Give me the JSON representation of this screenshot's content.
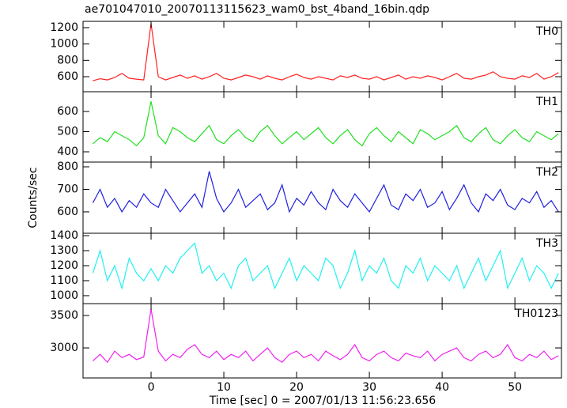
{
  "chart_data": [
    {
      "type": "line",
      "title": "ae701047010_20070113115623_wam0_bst_4band_16bin.qdp",
      "label": "TH0",
      "color": "#ff2020",
      "x": [
        -8,
        -7,
        -6,
        -5,
        -4,
        -3,
        -2,
        -1,
        0,
        1,
        2,
        3,
        4,
        5,
        6,
        7,
        8,
        9,
        10,
        11,
        12,
        13,
        14,
        15,
        16,
        17,
        18,
        19,
        20,
        21,
        22,
        23,
        24,
        25,
        26,
        27,
        28,
        29,
        30,
        31,
        32,
        33,
        34,
        35,
        36,
        37,
        38,
        39,
        40,
        41,
        42,
        43,
        44,
        45,
        46,
        47,
        48,
        49,
        50,
        51,
        52,
        53,
        54,
        55,
        56
      ],
      "values": [
        550,
        575,
        560,
        590,
        640,
        580,
        570,
        560,
        1250,
        600,
        560,
        590,
        620,
        580,
        610,
        570,
        600,
        640,
        580,
        560,
        590,
        620,
        600,
        570,
        610,
        580,
        560,
        600,
        630,
        590,
        570,
        600,
        580,
        560,
        610,
        590,
        620,
        580,
        570,
        600,
        560,
        590,
        620,
        570,
        600,
        580,
        610,
        590,
        560,
        600,
        640,
        580,
        570,
        600,
        620,
        660,
        600,
        580,
        570,
        610,
        590,
        640,
        570,
        600,
        650
      ],
      "xlim": [
        -9.35,
        56.4
      ],
      "ylim": [
        416,
        1277
      ],
      "yticks": [
        600,
        800,
        1000,
        1200
      ]
    },
    {
      "type": "line",
      "label": "TH1",
      "color": "#20e020",
      "x": [
        -8,
        -7,
        -6,
        -5,
        -4,
        -3,
        -2,
        -1,
        0,
        1,
        2,
        3,
        4,
        5,
        6,
        7,
        8,
        9,
        10,
        11,
        12,
        13,
        14,
        15,
        16,
        17,
        18,
        19,
        20,
        21,
        22,
        23,
        24,
        25,
        26,
        27,
        28,
        29,
        30,
        31,
        32,
        33,
        34,
        35,
        36,
        37,
        38,
        39,
        40,
        41,
        42,
        43,
        44,
        45,
        46,
        47,
        48,
        49,
        50,
        51,
        52,
        53,
        54,
        55,
        56
      ],
      "values": [
        440,
        470,
        450,
        500,
        480,
        460,
        430,
        470,
        650,
        480,
        440,
        520,
        500,
        470,
        450,
        490,
        530,
        460,
        440,
        480,
        510,
        470,
        450,
        500,
        530,
        480,
        440,
        470,
        500,
        460,
        490,
        520,
        470,
        440,
        480,
        510,
        460,
        430,
        490,
        520,
        480,
        450,
        500,
        470,
        440,
        510,
        490,
        460,
        480,
        500,
        530,
        470,
        450,
        490,
        520,
        460,
        440,
        480,
        510,
        470,
        450,
        500,
        480,
        460,
        490
      ],
      "xlim": [
        -9.35,
        56.4
      ],
      "ylim": [
        349,
        698
      ],
      "yticks": [
        400,
        500,
        600
      ]
    },
    {
      "type": "line",
      "label": "TH2",
      "color": "#2020e0",
      "ylabel": "Counts/sec",
      "x": [
        -8,
        -7,
        -6,
        -5,
        -4,
        -3,
        -2,
        -1,
        0,
        1,
        2,
        3,
        4,
        5,
        6,
        7,
        8,
        9,
        10,
        11,
        12,
        13,
        14,
        15,
        16,
        17,
        18,
        19,
        20,
        21,
        22,
        23,
        24,
        25,
        26,
        27,
        28,
        29,
        30,
        31,
        32,
        33,
        34,
        35,
        36,
        37,
        38,
        39,
        40,
        41,
        42,
        43,
        44,
        45,
        46,
        47,
        48,
        49,
        50,
        51,
        52,
        53,
        54,
        55,
        56
      ],
      "values": [
        640,
        700,
        620,
        660,
        600,
        650,
        620,
        680,
        640,
        620,
        700,
        650,
        600,
        640,
        680,
        620,
        780,
        660,
        600,
        640,
        700,
        620,
        650,
        680,
        610,
        640,
        720,
        600,
        660,
        630,
        690,
        640,
        610,
        700,
        650,
        620,
        680,
        640,
        600,
        660,
        720,
        630,
        610,
        680,
        650,
        700,
        620,
        640,
        690,
        610,
        660,
        720,
        640,
        600,
        680,
        650,
        700,
        630,
        610,
        660,
        640,
        690,
        620,
        650,
        600
      ],
      "xlim": [
        -9.35,
        56.4
      ],
      "ylim": [
        505,
        821
      ],
      "yticks": [
        600,
        700,
        800
      ]
    },
    {
      "type": "line",
      "label": "TH3",
      "color": "#20f0f0",
      "x": [
        -8,
        -7,
        -6,
        -5,
        -4,
        -3,
        -2,
        -1,
        0,
        1,
        2,
        3,
        4,
        5,
        6,
        7,
        8,
        9,
        10,
        11,
        12,
        13,
        14,
        15,
        16,
        17,
        18,
        19,
        20,
        21,
        22,
        23,
        24,
        25,
        26,
        27,
        28,
        29,
        30,
        31,
        32,
        33,
        34,
        35,
        36,
        37,
        38,
        39,
        40,
        41,
        42,
        43,
        44,
        45,
        46,
        47,
        48,
        49,
        50,
        51,
        52,
        53,
        54,
        55,
        56
      ],
      "values": [
        1150,
        1300,
        1100,
        1200,
        1050,
        1250,
        1150,
        1100,
        1180,
        1100,
        1200,
        1150,
        1250,
        1300,
        1350,
        1150,
        1200,
        1100,
        1150,
        1050,
        1200,
        1250,
        1100,
        1150,
        1200,
        1050,
        1150,
        1250,
        1100,
        1200,
        1150,
        1100,
        1250,
        1200,
        1050,
        1150,
        1300,
        1100,
        1200,
        1150,
        1250,
        1100,
        1050,
        1200,
        1150,
        1250,
        1100,
        1200,
        1150,
        1100,
        1200,
        1050,
        1150,
        1250,
        1100,
        1200,
        1300,
        1050,
        1150,
        1250,
        1100,
        1200,
        1150,
        1050,
        1150
      ],
      "xlim": [
        -9.35,
        56.4
      ],
      "ylim": [
        947,
        1416
      ],
      "yticks": [
        1000,
        1100,
        1200,
        1300,
        1400
      ]
    },
    {
      "type": "line",
      "label": "TH0123",
      "color": "#f020f0",
      "xlabel": "Time [sec] 0 = 2007/01/13 11:56:23.656",
      "x": [
        -8,
        -7,
        -6,
        -5,
        -4,
        -3,
        -2,
        -1,
        0,
        1,
        2,
        3,
        4,
        5,
        6,
        7,
        8,
        9,
        10,
        11,
        12,
        13,
        14,
        15,
        16,
        17,
        18,
        19,
        20,
        21,
        22,
        23,
        24,
        25,
        26,
        27,
        28,
        29,
        30,
        31,
        32,
        33,
        34,
        35,
        36,
        37,
        38,
        39,
        40,
        41,
        42,
        43,
        44,
        45,
        46,
        47,
        48,
        49,
        50,
        51,
        52,
        53,
        54,
        55,
        56
      ],
      "values": [
        2800,
        2900,
        2780,
        2950,
        2850,
        2900,
        2820,
        2860,
        3600,
        2950,
        2800,
        2900,
        2850,
        2980,
        3050,
        2900,
        2850,
        2950,
        2820,
        2900,
        2850,
        2950,
        2800,
        2900,
        3000,
        2850,
        2780,
        2900,
        2950,
        2850,
        2900,
        2800,
        2950,
        2880,
        2820,
        2900,
        3050,
        2850,
        2800,
        2900,
        2950,
        2850,
        2800,
        2920,
        2880,
        2850,
        2950,
        2800,
        2900,
        2950,
        3000,
        2850,
        2800,
        2900,
        2950,
        2850,
        2900,
        3050,
        2850,
        2800,
        2900,
        2850,
        2950,
        2820,
        2880
      ],
      "xlim": [
        -9.35,
        56.4
      ],
      "ylim": [
        2537,
        3683
      ],
      "yticks": [
        3000,
        3500
      ],
      "xticks": [
        0,
        10,
        20,
        30,
        40,
        50
      ]
    }
  ]
}
